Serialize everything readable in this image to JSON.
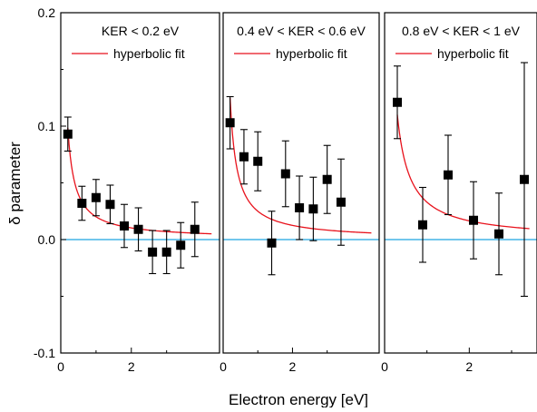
{
  "chart_data": [
    {
      "type": "scatter",
      "panel_title": "KER < 0.2 eV",
      "legend": {
        "label": "hyperbolic fit",
        "color": "#e8121c"
      },
      "xlim": [
        0,
        4.5
      ],
      "ylim": [
        -0.1,
        0.2
      ],
      "xticks": [
        {
          "value": 0,
          "label": "0"
        },
        {
          "value": 2,
          "label": "2"
        }
      ],
      "yticks": [
        {
          "value": -0.1,
          "label": "-0.1"
        },
        {
          "value": 0.0,
          "label": "0.0"
        },
        {
          "value": 0.1,
          "label": "0.1"
        },
        {
          "value": 0.2,
          "label": "0.2"
        }
      ],
      "points": [
        {
          "x": 0.2,
          "y": 0.093,
          "err": 0.015
        },
        {
          "x": 0.6,
          "y": 0.032,
          "err": 0.015
        },
        {
          "x": 1.0,
          "y": 0.037,
          "err": 0.016
        },
        {
          "x": 1.4,
          "y": 0.031,
          "err": 0.017
        },
        {
          "x": 1.8,
          "y": 0.012,
          "err": 0.019
        },
        {
          "x": 2.2,
          "y": 0.009,
          "err": 0.019
        },
        {
          "x": 2.6,
          "y": -0.011,
          "err": 0.019
        },
        {
          "x": 3.0,
          "y": -0.011,
          "err": 0.019
        },
        {
          "x": 3.4,
          "y": -0.005,
          "err": 0.02
        },
        {
          "x": 3.8,
          "y": 0.009,
          "err": 0.024
        }
      ],
      "fit": {
        "a": 0.0196,
        "b": 0.0005
      }
    },
    {
      "type": "scatter",
      "panel_title": "0.4 eV < KER < 0.6 eV",
      "legend": {
        "label": "hyperbolic fit",
        "color": "#e8121c"
      },
      "xlim": [
        0,
        4.5
      ],
      "ylim": [
        -0.1,
        0.2
      ],
      "xticks": [
        {
          "value": 0,
          "label": "0"
        },
        {
          "value": 2,
          "label": "2"
        }
      ],
      "points": [
        {
          "x": 0.2,
          "y": 0.103,
          "err": 0.023
        },
        {
          "x": 0.6,
          "y": 0.073,
          "err": 0.024
        },
        {
          "x": 1.0,
          "y": 0.069,
          "err": 0.026
        },
        {
          "x": 1.4,
          "y": -0.003,
          "err": 0.028
        },
        {
          "x": 1.8,
          "y": 0.058,
          "err": 0.029
        },
        {
          "x": 2.2,
          "y": 0.028,
          "err": 0.028
        },
        {
          "x": 2.6,
          "y": 0.027,
          "err": 0.028
        },
        {
          "x": 3.0,
          "y": 0.053,
          "err": 0.03
        },
        {
          "x": 3.4,
          "y": 0.033,
          "err": 0.038
        }
      ],
      "fit": {
        "a": 0.025,
        "b": 0.0
      }
    },
    {
      "type": "scatter",
      "panel_title": "0.8 eV < KER < 1 eV",
      "legend": {
        "label": "hyperbolic fit",
        "color": "#e8121c"
      },
      "xlim": [
        0,
        3.6
      ],
      "ylim": [
        -0.1,
        0.2
      ],
      "xticks": [
        {
          "value": 0,
          "label": "0"
        },
        {
          "value": 2,
          "label": "2"
        }
      ],
      "points": [
        {
          "x": 0.3,
          "y": 0.121,
          "err": 0.032
        },
        {
          "x": 0.9,
          "y": 0.013,
          "err": 0.033
        },
        {
          "x": 1.5,
          "y": 0.057,
          "err": 0.035
        },
        {
          "x": 2.1,
          "y": 0.017,
          "err": 0.034
        },
        {
          "x": 2.7,
          "y": 0.005,
          "err": 0.036
        },
        {
          "x": 3.3,
          "y": 0.053,
          "err": 0.103
        }
      ],
      "fit": {
        "a": 0.033,
        "b": 0.0
      }
    }
  ],
  "xlabel": "Electron energy [eV]",
  "ylabel": "δ parameter",
  "colors": {
    "fit": "#e8121c",
    "zero_line": "#1fa3e0",
    "markers": "#000000"
  }
}
